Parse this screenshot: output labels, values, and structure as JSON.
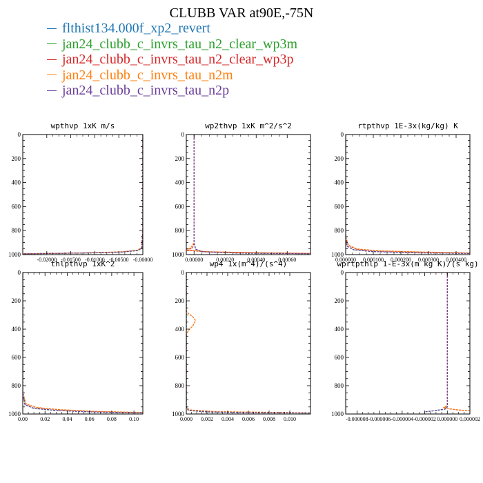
{
  "title": "CLUBB VAR at90E,-75N",
  "colors": {
    "revert": "#1f77b4",
    "wp3m": "#2ca02c",
    "wp3p": "#d62728",
    "n2m": "#ff7f0e",
    "n2p": "#6a3d9a"
  },
  "legend": [
    {
      "label": "flthist134.000f_xp2_revert",
      "color": "#1f77b4"
    },
    {
      "label": "jan24_clubb_c_invrs_tau_n2_clear_wp3m",
      "color": "#2ca02c"
    },
    {
      "label": "jan24_clubb_c_invrs_tau_n2_clear_wp3p",
      "color": "#d62728"
    },
    {
      "label": "jan24_clubb_c_invrs_tau_n2m",
      "color": "#ff7f0e"
    },
    {
      "label": "jan24_clubb_c_invrs_tau_n2p",
      "color": "#6a3d9a"
    }
  ],
  "chart_data": [
    {
      "type": "line",
      "title": "wpthvp  1xK m/s",
      "xlim": [
        -0.025,
        0.0
      ],
      "ylim": [
        1000,
        0
      ],
      "xticks": [
        -0.02,
        -0.015,
        -0.01,
        -0.005,
        0.0
      ],
      "xticklabels": [
        "-0.02000",
        "-0.01500",
        "-0.01000",
        "-0.00500",
        "-0.00000"
      ],
      "yticks": [
        0,
        200,
        400,
        600,
        800,
        1000
      ],
      "series": [
        {
          "color": "#1f77b4",
          "x": [
            0,
            0,
            0,
            -0.0002,
            -0.001,
            -0.004,
            -0.01,
            -0.018,
            -0.025
          ],
          "y": [
            0,
            300,
            800,
            945,
            965,
            978,
            985,
            990,
            993
          ]
        },
        {
          "color": "#2ca02c",
          "x": [
            0,
            0,
            0,
            -0.0002,
            -0.001,
            -0.004,
            -0.01,
            -0.018,
            -0.025
          ],
          "y": [
            0,
            300,
            800,
            945,
            966,
            978,
            986,
            990,
            993
          ]
        },
        {
          "color": "#d62728",
          "x": [
            0,
            0,
            0,
            -0.0003,
            -0.0012,
            -0.0045,
            -0.011,
            -0.019,
            -0.025
          ],
          "y": [
            0,
            300,
            800,
            944,
            964,
            977,
            985,
            990,
            993
          ]
        },
        {
          "color": "#ff7f0e",
          "x": [
            0,
            0,
            0,
            -0.0003,
            -0.0012,
            -0.0045,
            -0.011,
            -0.019,
            -0.025
          ],
          "y": [
            0,
            300,
            800,
            943,
            963,
            977,
            985,
            990,
            993
          ]
        },
        {
          "color": "#6a3d9a",
          "x": [
            0,
            0,
            0,
            -0.0002,
            -0.001,
            -0.004,
            -0.01,
            -0.018,
            -0.025
          ],
          "y": [
            0,
            300,
            800,
            945,
            965,
            978,
            985,
            990,
            993
          ]
        }
      ]
    },
    {
      "type": "line",
      "title": "wp2thvp  1xK m^2/s^2",
      "xlim": [
        -5e-05,
        0.00075
      ],
      "ylim": [
        1000,
        0
      ],
      "xticks": [
        0.0,
        0.0002,
        0.0004,
        0.0006
      ],
      "xticklabels": [
        "0.00000",
        "0.00020",
        "0.00040",
        "0.00060"
      ],
      "yticks": [
        0,
        200,
        400,
        600,
        800,
        1000
      ],
      "series": [
        {
          "color": "#1f77b4",
          "x": [
            0,
            0,
            0,
            1e-05,
            5e-05,
            0.0003,
            0.00075
          ],
          "y": [
            0,
            400,
            900,
            955,
            975,
            988,
            992
          ]
        },
        {
          "color": "#2ca02c",
          "x": [
            0,
            0,
            0,
            1e-05,
            5e-05,
            0.0003,
            0.00075
          ],
          "y": [
            0,
            400,
            900,
            955,
            976,
            988,
            992
          ]
        },
        {
          "color": "#d62728",
          "x": [
            0,
            0,
            0,
            -1e-05,
            -5e-05,
            0.0001,
            0.0004,
            0.00075
          ],
          "y": [
            0,
            400,
            900,
            945,
            965,
            978,
            985,
            990
          ]
        },
        {
          "color": "#ff7f0e",
          "x": [
            0,
            0,
            0,
            -2e-05,
            -5e-05,
            0.0001,
            0.0004,
            0.00075
          ],
          "y": [
            0,
            400,
            900,
            940,
            962,
            976,
            984,
            990
          ]
        },
        {
          "color": "#6a3d9a",
          "x": [
            0,
            0,
            0,
            1e-05,
            5e-05,
            0.0003,
            0.00075
          ],
          "y": [
            0,
            400,
            900,
            955,
            975,
            988,
            992
          ]
        }
      ]
    },
    {
      "type": "line",
      "title": "rtpthvp  1E-3x(kg/kg) K",
      "xlim": [
        0.0,
        0.00045
      ],
      "ylim": [
        1000,
        0
      ],
      "xticks": [
        0.0,
        0.0001,
        0.0002,
        0.0003,
        0.0004
      ],
      "xticklabels": [
        "0.000000",
        "0.000100",
        "0.000200",
        "0.000300",
        "0.000400"
      ],
      "yticks": [
        0,
        200,
        400,
        600,
        800,
        1000
      ],
      "series": [
        {
          "color": "#1f77b4",
          "x": [
            0,
            0,
            0,
            5e-06,
            3e-05,
            0.0001,
            0.00025,
            0.00045
          ],
          "y": [
            0,
            400,
            850,
            930,
            960,
            975,
            985,
            990
          ]
        },
        {
          "color": "#2ca02c",
          "x": [
            0,
            0,
            0,
            5e-06,
            3e-05,
            0.0001,
            0.00025,
            0.00045
          ],
          "y": [
            0,
            400,
            850,
            930,
            961,
            975,
            985,
            990
          ]
        },
        {
          "color": "#d62728",
          "x": [
            0,
            0,
            0,
            1e-05,
            4e-05,
            0.00012,
            0.00028,
            0.00045
          ],
          "y": [
            0,
            400,
            850,
            925,
            955,
            970,
            980,
            987
          ]
        },
        {
          "color": "#ff7f0e",
          "x": [
            0,
            0,
            0,
            1e-05,
            4e-05,
            0.00012,
            0.00028,
            0.00045
          ],
          "y": [
            0,
            400,
            850,
            920,
            952,
            968,
            978,
            986
          ]
        },
        {
          "color": "#6a3d9a",
          "x": [
            0,
            0,
            0,
            5e-06,
            3e-05,
            0.0001,
            0.00025,
            0.00045
          ],
          "y": [
            0,
            400,
            850,
            930,
            960,
            975,
            985,
            990
          ]
        }
      ]
    },
    {
      "type": "line",
      "title": "thlpthvp  1xK^2",
      "xlim": [
        0.0,
        0.108
      ],
      "ylim": [
        1000,
        0
      ],
      "xticks": [
        0.0,
        0.02,
        0.04,
        0.06,
        0.08,
        0.1
      ],
      "xticklabels": [
        "0.00",
        "0.02",
        "0.04",
        "0.06",
        "0.08",
        "0.10"
      ],
      "yticks": [
        0,
        200,
        400,
        600,
        800,
        1000
      ],
      "series": [
        {
          "color": "#1f77b4",
          "x": [
            0,
            0,
            0,
            0.002,
            0.01,
            0.03,
            0.06,
            0.108
          ],
          "y": [
            0,
            400,
            850,
            935,
            960,
            975,
            985,
            992
          ]
        },
        {
          "color": "#2ca02c",
          "x": [
            0,
            0,
            0,
            0.002,
            0.01,
            0.03,
            0.06,
            0.108
          ],
          "y": [
            0,
            400,
            850,
            935,
            961,
            975,
            985,
            992
          ]
        },
        {
          "color": "#d62728",
          "x": [
            0,
            0,
            0,
            0.003,
            0.012,
            0.033,
            0.065,
            0.108
          ],
          "y": [
            0,
            400,
            850,
            930,
            955,
            970,
            982,
            990
          ]
        },
        {
          "color": "#ff7f0e",
          "x": [
            0,
            0,
            0,
            0.003,
            0.012,
            0.033,
            0.065,
            0.108
          ],
          "y": [
            0,
            400,
            850,
            928,
            953,
            969,
            981,
            989
          ]
        },
        {
          "color": "#6a3d9a",
          "x": [
            0,
            0,
            0,
            0.002,
            0.01,
            0.03,
            0.06,
            0.108
          ],
          "y": [
            0,
            400,
            850,
            935,
            960,
            975,
            985,
            992
          ]
        }
      ]
    },
    {
      "type": "line",
      "title": "wp4  1x(m^4)/(s^4)",
      "xlim": [
        0.0,
        0.012
      ],
      "ylim": [
        1000,
        0
      ],
      "xticks": [
        0.0,
        0.002,
        0.004,
        0.006,
        0.008,
        0.01
      ],
      "xticklabels": [
        "0.000",
        "0.002",
        "0.004",
        "0.006",
        "0.008",
        "0.010"
      ],
      "yticks": [
        0,
        200,
        400,
        600,
        800,
        1000
      ],
      "series": [
        {
          "color": "#1f77b4",
          "x": [
            0,
            0,
            0,
            0.0002,
            0.002,
            0.006,
            0.012
          ],
          "y": [
            0,
            500,
            950,
            975,
            985,
            990,
            993
          ]
        },
        {
          "color": "#2ca02c",
          "x": [
            0,
            0,
            0,
            0.0002,
            0.002,
            0.006,
            0.012
          ],
          "y": [
            0,
            500,
            950,
            975,
            986,
            990,
            993
          ]
        },
        {
          "color": "#d62728",
          "x": [
            0,
            0,
            0.0002,
            0.0006,
            0.0009,
            0.0006,
            0.0002,
            0,
            0,
            0.0003,
            0.003,
            0.012
          ],
          "y": [
            0,
            270,
            290,
            310,
            340,
            380,
            410,
            440,
            950,
            972,
            984,
            992
          ]
        },
        {
          "color": "#ff7f0e",
          "x": [
            0,
            0,
            0.0002,
            0.0006,
            0.0009,
            0.0006,
            0.0002,
            0,
            0,
            0.0003,
            0.003,
            0.012
          ],
          "y": [
            0,
            270,
            290,
            310,
            340,
            380,
            410,
            440,
            950,
            971,
            983,
            992
          ]
        },
        {
          "color": "#6a3d9a",
          "x": [
            0,
            0,
            0,
            0.0002,
            0.002,
            0.006,
            0.012
          ],
          "y": [
            0,
            500,
            950,
            975,
            985,
            990,
            993
          ]
        }
      ]
    },
    {
      "type": "line",
      "title": "wprtpthlp  1-E-3x(m kg K)/(s kg)",
      "xlim": [
        -9e-06,
        2e-06
      ],
      "ylim": [
        1000,
        0
      ],
      "xticks": [
        -8e-06,
        -6e-06,
        -4e-06,
        -2e-06,
        0.0,
        2e-06
      ],
      "xticklabels": [
        "-0.000008",
        "-0.000006",
        "-0.000004",
        "-0.000002",
        "0.000000",
        "0.000002"
      ],
      "yticks": [
        0,
        200,
        400,
        600,
        800,
        1000
      ],
      "series": [
        {
          "color": "#1f77b4",
          "x": [
            0,
            0,
            0,
            -2e-07,
            -1e-06,
            -2e-06
          ],
          "y": [
            0,
            400,
            950,
            965,
            975,
            985
          ]
        },
        {
          "color": "#2ca02c",
          "x": [
            0,
            0,
            0,
            -2e-07,
            -1e-06,
            -2e-06
          ],
          "y": [
            0,
            400,
            950,
            966,
            976,
            985
          ]
        },
        {
          "color": "#d62728",
          "x": [
            0,
            0,
            0,
            -3e-07,
            3e-07,
            1e-06,
            2e-06
          ],
          "y": [
            0,
            400,
            940,
            955,
            965,
            972,
            978
          ]
        },
        {
          "color": "#ff7f0e",
          "x": [
            0,
            0,
            0,
            -3e-07,
            3e-07,
            1e-06,
            2e-06
          ],
          "y": [
            0,
            400,
            938,
            953,
            964,
            971,
            977
          ]
        },
        {
          "color": "#6a3d9a",
          "x": [
            0,
            0,
            0,
            -2e-07,
            -1e-06,
            -2e-06
          ],
          "y": [
            0,
            400,
            950,
            965,
            975,
            985
          ]
        }
      ]
    }
  ]
}
